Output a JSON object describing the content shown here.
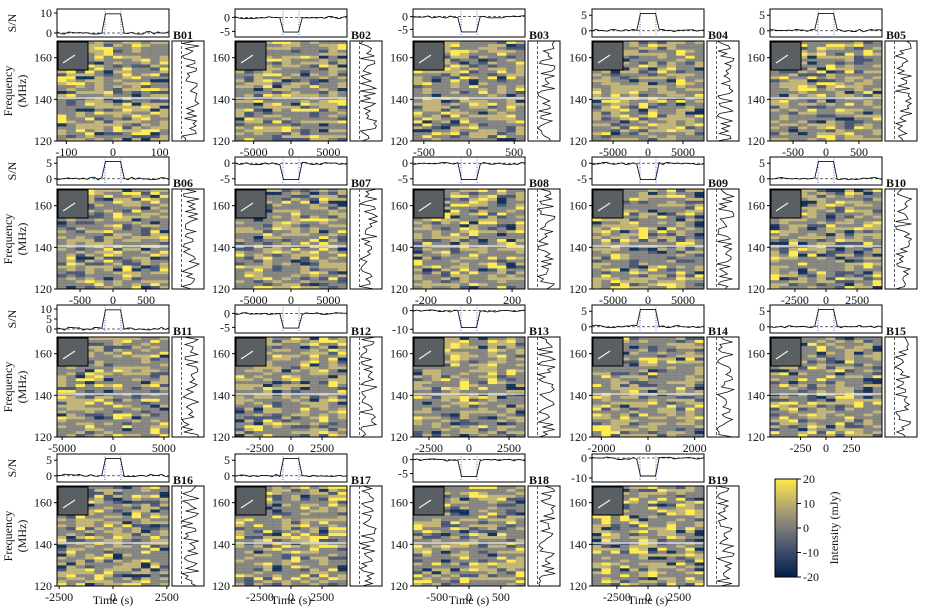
{
  "chart_data": {
    "type": "heatmap",
    "description_labels": {
      "sn_axis": "S/N",
      "freq_axis": "Frequency",
      "freq_unit": "(MHz)",
      "time_axis": "Time (s)",
      "colorbar_label": "Intensity (mJy)"
    },
    "frequency_ticks": [
      120,
      140,
      160
    ],
    "frequency_range": [
      120,
      168
    ],
    "colorbar": {
      "ticks": [
        20,
        10,
        0,
        -10,
        -20
      ],
      "range": [
        -20,
        20
      ],
      "colors": [
        "#00204d",
        "#3b4a6b",
        "#7b7b78",
        "#bcae6e",
        "#ffe945"
      ]
    },
    "panels": [
      {
        "id": "B01",
        "time_ticks": [
          -100,
          0,
          100
        ],
        "time_range": [
          -120,
          120
        ],
        "sn_ticks": [
          0,
          10
        ],
        "sn_range": [
          -2,
          12
        ]
      },
      {
        "id": "B02",
        "time_ticks": [
          -5000,
          0,
          5000
        ],
        "time_range": [
          -7500,
          7500
        ],
        "sn_ticks": [
          -5,
          0
        ],
        "sn_range": [
          -7,
          3
        ]
      },
      {
        "id": "B03",
        "time_ticks": [
          -500,
          0,
          500
        ],
        "time_range": [
          -620,
          620
        ],
        "sn_ticks": [
          -5,
          0
        ],
        "sn_range": [
          -8,
          3
        ]
      },
      {
        "id": "B04",
        "time_ticks": [
          -5000,
          0,
          5000
        ],
        "time_range": [
          -8000,
          8000
        ],
        "sn_ticks": [
          0,
          5
        ],
        "sn_range": [
          -2,
          7
        ]
      },
      {
        "id": "B05",
        "time_ticks": [
          -500,
          0,
          500
        ],
        "time_range": [
          -850,
          850
        ],
        "sn_ticks": [
          0,
          5
        ],
        "sn_range": [
          -2,
          7
        ]
      },
      {
        "id": "B06",
        "time_ticks": [
          -500,
          0,
          500
        ],
        "time_range": [
          -850,
          850
        ],
        "sn_ticks": [
          0,
          5
        ],
        "sn_range": [
          -2,
          7
        ]
      },
      {
        "id": "B07",
        "time_ticks": [
          -5000,
          0,
          5000
        ],
        "time_range": [
          -7500,
          7500
        ],
        "sn_ticks": [
          -5,
          0
        ],
        "sn_range": [
          -7,
          2
        ]
      },
      {
        "id": "B08",
        "time_ticks": [
          -200,
          0,
          200
        ],
        "time_range": [
          -260,
          260
        ],
        "sn_ticks": [
          -5,
          0
        ],
        "sn_range": [
          -7,
          2
        ]
      },
      {
        "id": "B09",
        "time_ticks": [
          -5000,
          0,
          5000
        ],
        "time_range": [
          -8000,
          8000
        ],
        "sn_ticks": [
          -5,
          0
        ],
        "sn_range": [
          -7,
          2
        ]
      },
      {
        "id": "B10",
        "time_ticks": [
          -2500,
          0,
          2500
        ],
        "time_range": [
          -4500,
          4500
        ],
        "sn_ticks": [
          0,
          5
        ],
        "sn_range": [
          -2,
          7
        ]
      },
      {
        "id": "B11",
        "time_ticks": [
          -5000,
          0,
          5000
        ],
        "time_range": [
          -5500,
          5500
        ],
        "sn_ticks": [
          0,
          5,
          10
        ],
        "sn_range": [
          -2,
          12
        ]
      },
      {
        "id": "B12",
        "time_ticks": [
          -2500,
          0,
          2500
        ],
        "time_range": [
          -4500,
          4500
        ],
        "sn_ticks": [
          -5,
          0
        ],
        "sn_range": [
          -7,
          3
        ]
      },
      {
        "id": "B13",
        "time_ticks": [
          -2500,
          0,
          2500
        ],
        "time_range": [
          -3500,
          3500
        ],
        "sn_ticks": [
          -10,
          0
        ],
        "sn_range": [
          -12,
          3
        ]
      },
      {
        "id": "B14",
        "time_ticks": [
          -2000,
          0,
          2000
        ],
        "time_range": [
          -2400,
          2400
        ],
        "sn_ticks": [
          0,
          5
        ],
        "sn_range": [
          -2,
          7
        ]
      },
      {
        "id": "B15",
        "time_ticks": [
          -250,
          0,
          250
        ],
        "time_range": [
          -550,
          550
        ],
        "sn_ticks": [
          0,
          5
        ],
        "sn_range": [
          -2,
          7
        ]
      },
      {
        "id": "B16",
        "time_ticks": [
          -2500,
          0,
          2500
        ],
        "time_range": [
          -2600,
          2600
        ],
        "sn_ticks": [
          0,
          5
        ],
        "sn_range": [
          -2,
          7
        ]
      },
      {
        "id": "B17",
        "time_ticks": [
          -2500,
          0,
          2500
        ],
        "time_range": [
          -4500,
          4500
        ],
        "sn_ticks": [
          0,
          5
        ],
        "sn_range": [
          -2,
          7
        ]
      },
      {
        "id": "B18",
        "time_ticks": [
          -500,
          0,
          500
        ],
        "time_range": [
          -880,
          880
        ],
        "sn_ticks": [
          -5,
          0
        ],
        "sn_range": [
          -8,
          2
        ]
      },
      {
        "id": "B19",
        "time_ticks": [
          -2500,
          0,
          2500
        ],
        "time_range": [
          -4500,
          4500
        ],
        "sn_ticks": [
          -10,
          0
        ],
        "sn_range": [
          -12,
          2
        ]
      }
    ]
  }
}
